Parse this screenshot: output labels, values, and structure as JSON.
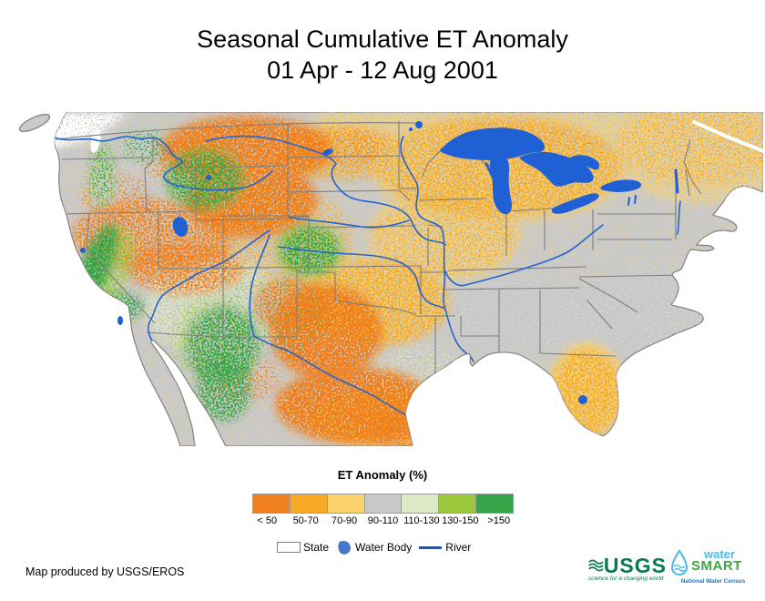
{
  "title": {
    "line1": "Seasonal Cumulative ET Anomaly",
    "line2": "01 Apr - 12 Aug 2001"
  },
  "map": {
    "name": "Continental U.S. seasonal cumulative evapotranspiration (ET) anomaly map",
    "colors": {
      "land": "#C9C9C9",
      "ocean": "#FFFFFF",
      "lake": "#1F60D5",
      "river": "#2663CE",
      "boundary": "#7F7F7F",
      "no_data": "#FFFFFF",
      "legend_water_body": "#4677C8",
      "legend_river": "#2C4F9E"
    },
    "anomaly_regions": [
      {
        "area": "Montana, Wyoming, Nevada, Utah, western Dakotas",
        "class": "< 50"
      },
      {
        "area": "West Texas, eastern New Mexico, northern Mexico (Chihuahua/Coahuila)",
        "class": "< 50"
      },
      {
        "area": "Upper Midwest (Minnesota, Wisconsin, Michigan), Iowa-Missouri belt, Florida, southern Canada",
        "class": "50-90"
      },
      {
        "area": "Eastern U.S., Pacific Northwest coast",
        "class": "90-110"
      },
      {
        "area": "Arizona / New Mexico highlands, south Texas coast",
        "class": "110-130"
      },
      {
        "area": "California Central Valley, southern California, central Arizona, Sonora, eastern Colorado / western Kansas, central Idaho",
        "class": "130->150"
      }
    ]
  },
  "legend": {
    "title": "ET Anomaly (%)",
    "classes": [
      {
        "label": "< 50",
        "color": "#F1801F"
      },
      {
        "label": "50-70",
        "color": "#F6A923"
      },
      {
        "label": "70-90",
        "color": "#FBD36D"
      },
      {
        "label": "90-110",
        "color": "#C9C9C9"
      },
      {
        "label": "110-130",
        "color": "#DCE8C6"
      },
      {
        "label": "130-150",
        "color": "#9CC93C"
      },
      {
        "label": ">150",
        "color": "#35A348"
      }
    ],
    "symbols": {
      "state": "State",
      "water": "Water Body",
      "river": "River"
    }
  },
  "credit": "Map produced by USGS/EROS",
  "logos": {
    "colors": {
      "usgs_green": "#087A4C",
      "ws_blue": "#49B9E9",
      "ws_green": "#3FA545",
      "ws_tagblue": "#1878BE"
    },
    "usgs": {
      "name": "USGS",
      "tagline": "science for a changing world"
    },
    "watersmart": {
      "word_top": "water",
      "word_bottom": "SMART",
      "tagline": "National Water Census"
    }
  }
}
